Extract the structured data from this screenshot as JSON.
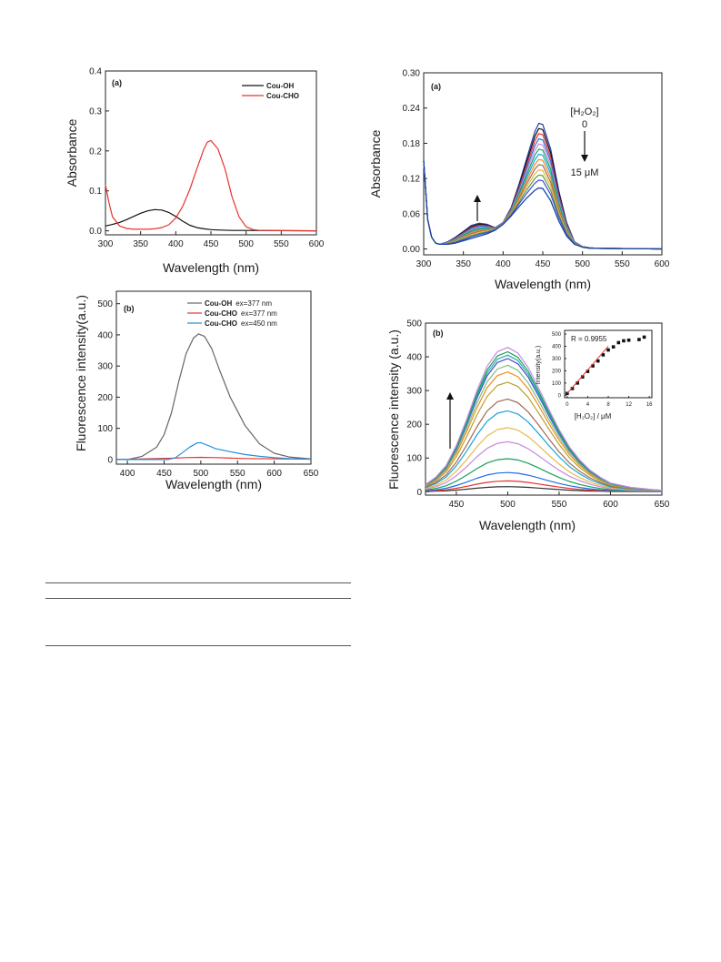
{
  "chart_data": [
    {
      "id": "p1",
      "type": "line",
      "panel_label": "(a)",
      "xlabel": "Wavelength (nm)",
      "ylabel": "Absorbance",
      "xlim": [
        300,
        600
      ],
      "ylim": [
        -0.01,
        0.4
      ],
      "xticks": [
        300,
        350,
        400,
        450,
        500,
        550,
        600
      ],
      "xtick_labels": [
        "300",
        "350",
        "400",
        "450",
        "500",
        "550",
        "600"
      ],
      "yticks": [
        0.0,
        0.1,
        0.2,
        0.3,
        0.4
      ],
      "ytick_labels": [
        "0.0",
        "0.1",
        "0.2",
        "0.3",
        "0.4"
      ],
      "legend": {
        "position": "top-right",
        "entries": [
          {
            "label": "Cou-OH",
            "color": "#111111"
          },
          {
            "label": "Cou-CHO",
            "color": "#e8322e"
          }
        ]
      },
      "series": [
        {
          "name": "Cou-OH",
          "color": "#111111",
          "x": [
            300,
            310,
            320,
            330,
            340,
            350,
            360,
            370,
            380,
            390,
            400,
            410,
            420,
            430,
            440,
            450,
            460,
            480,
            500,
            600
          ],
          "y": [
            0.012,
            0.016,
            0.021,
            0.028,
            0.036,
            0.044,
            0.05,
            0.053,
            0.052,
            0.046,
            0.036,
            0.024,
            0.014,
            0.008,
            0.005,
            0.003,
            0.002,
            0.001,
            0.001,
            0.0
          ]
        },
        {
          "name": "Cou-CHO",
          "color": "#e8322e",
          "x": [
            300,
            305,
            310,
            320,
            330,
            340,
            350,
            360,
            370,
            380,
            390,
            400,
            410,
            420,
            430,
            440,
            445,
            450,
            460,
            470,
            480,
            490,
            500,
            510,
            520,
            600
          ],
          "y": [
            0.115,
            0.07,
            0.035,
            0.012,
            0.006,
            0.004,
            0.004,
            0.004,
            0.005,
            0.008,
            0.015,
            0.032,
            0.062,
            0.104,
            0.155,
            0.205,
            0.222,
            0.226,
            0.205,
            0.155,
            0.085,
            0.035,
            0.01,
            0.003,
            0.001,
            0.0
          ]
        }
      ]
    },
    {
      "id": "p2",
      "type": "line",
      "panel_label": "(a)",
      "xlabel": "Wavelength (nm)",
      "ylabel": "Absorbance",
      "xlim": [
        300,
        600
      ],
      "ylim": [
        -0.01,
        0.3
      ],
      "xticks": [
        300,
        350,
        400,
        450,
        500,
        550,
        600
      ],
      "xtick_labels": [
        "300",
        "350",
        "400",
        "450",
        "500",
        "550",
        "600"
      ],
      "yticks": [
        0.0,
        0.06,
        0.12,
        0.18,
        0.24,
        0.3
      ],
      "ytick_labels": [
        "0.00",
        "0.06",
        "0.12",
        "0.18",
        "0.24",
        "0.30"
      ],
      "annotations": {
        "conc_label": "[H₂O₂]",
        "start": "0",
        "end": "15 μM"
      },
      "x": [
        300,
        305,
        310,
        315,
        320,
        330,
        340,
        350,
        360,
        370,
        380,
        390,
        400,
        410,
        420,
        430,
        440,
        445,
        450,
        460,
        470,
        480,
        490,
        500,
        510,
        520,
        600
      ],
      "shape_a": [
        0.15,
        0.05,
        0.02,
        0.01,
        0.008,
        0.012,
        0.02,
        0.03,
        0.04,
        0.044,
        0.042,
        0.036,
        0.045,
        0.07,
        0.11,
        0.155,
        0.2,
        0.214,
        0.212,
        0.17,
        0.1,
        0.045,
        0.012,
        0.004,
        0.002,
        0.001,
        0.0
      ],
      "shape_b": [
        0.15,
        0.05,
        0.02,
        0.01,
        0.008,
        0.008,
        0.01,
        0.014,
        0.018,
        0.022,
        0.026,
        0.032,
        0.042,
        0.056,
        0.072,
        0.087,
        0.1,
        0.104,
        0.103,
        0.082,
        0.048,
        0.022,
        0.008,
        0.003,
        0.001,
        0.001,
        0.0
      ],
      "curves": [
        {
          "color": "#1f3fa8",
          "weight": 0
        },
        {
          "color": "#111111",
          "weight": 0.08
        },
        {
          "color": "#e8322e",
          "weight": 0.16
        },
        {
          "color": "#1f6fe0",
          "weight": 0.24
        },
        {
          "color": "#c58be0",
          "weight": 0.32
        },
        {
          "color": "#17a05a",
          "weight": 0.4
        },
        {
          "color": "#1aa5d6",
          "weight": 0.48
        },
        {
          "color": "#f28c1a",
          "weight": 0.56
        },
        {
          "color": "#a06a4f",
          "weight": 0.64
        },
        {
          "color": "#e8b84a",
          "weight": 0.72
        },
        {
          "color": "#5a9a3e",
          "weight": 0.8
        },
        {
          "color": "#3f4bd8",
          "weight": 0.88
        },
        {
          "color": "#2aa8a0",
          "weight": 1.0
        },
        {
          "color": "#1f3fa8",
          "weight": 1.0
        }
      ]
    },
    {
      "id": "p3",
      "type": "line",
      "panel_label": "(b)",
      "xlabel": "Wavelength (nm)",
      "ylabel": "Fluorescence intensity(a.u.)",
      "xlim": [
        385,
        650
      ],
      "ylim": [
        -15,
        540
      ],
      "xticks": [
        400,
        450,
        500,
        550,
        600,
        650
      ],
      "xtick_labels": [
        "400",
        "450",
        "500",
        "550",
        "600",
        "650"
      ],
      "yticks": [
        0,
        100,
        200,
        300,
        400,
        500
      ],
      "ytick_labels": [
        "0",
        "100",
        "200",
        "300",
        "400",
        "500"
      ],
      "legend": {
        "position": "top-right",
        "entries": [
          {
            "label": "Cou-OH",
            "suffix": "ex=377 nm",
            "color": "#666666"
          },
          {
            "label": "Cou-CHO",
            "suffix": "ex=377 nm",
            "color": "#e8322e"
          },
          {
            "label": "Cou-CHO",
            "suffix": "ex=450 nm",
            "color": "#1f8fe0"
          }
        ]
      },
      "series": [
        {
          "name": "Cou-OH ex=377 nm",
          "color": "#666666",
          "x": [
            385,
            400,
            420,
            440,
            450,
            460,
            470,
            480,
            490,
            497,
            505,
            515,
            525,
            540,
            560,
            580,
            600,
            620,
            650
          ],
          "y": [
            0,
            0,
            10,
            40,
            80,
            150,
            250,
            340,
            390,
            403,
            395,
            355,
            290,
            200,
            110,
            50,
            20,
            8,
            2
          ]
        },
        {
          "name": "Cou-CHO ex=377 nm",
          "color": "#e8322e",
          "x": [
            385,
            420,
            460,
            480,
            500,
            520,
            560,
            650
          ],
          "y": [
            0,
            2,
            4,
            6,
            7,
            6,
            3,
            1
          ]
        },
        {
          "name": "Cou-CHO ex=450 nm",
          "color": "#1f8fe0",
          "x": [
            385,
            455,
            465,
            475,
            485,
            495,
            500,
            510,
            520,
            540,
            560,
            580,
            600,
            620,
            650
          ],
          "y": [
            0,
            0,
            5,
            22,
            40,
            53,
            54,
            45,
            35,
            25,
            16,
            10,
            6,
            3,
            1
          ]
        }
      ]
    },
    {
      "id": "p4",
      "type": "line",
      "panel_label": "(b)",
      "xlabel": "Wavelength (nm)",
      "ylabel": "Fluorescence intensity (a.u.)",
      "xlim": [
        420,
        650
      ],
      "ylim": [
        -10,
        500
      ],
      "xticks": [
        450,
        500,
        550,
        600,
        650
      ],
      "xtick_labels": [
        "450",
        "500",
        "550",
        "600",
        "650"
      ],
      "yticks": [
        0,
        100,
        200,
        300,
        400,
        500
      ],
      "ytick_labels": [
        "0",
        "100",
        "200",
        "300",
        "400",
        "500"
      ],
      "profile_x": [
        420,
        430,
        440,
        450,
        460,
        470,
        480,
        490,
        500,
        510,
        520,
        530,
        540,
        550,
        560,
        570,
        580,
        590,
        600,
        620,
        640,
        650
      ],
      "profile_y": [
        0.05,
        0.1,
        0.18,
        0.32,
        0.5,
        0.7,
        0.87,
        0.97,
        1.0,
        0.96,
        0.86,
        0.72,
        0.57,
        0.43,
        0.31,
        0.22,
        0.15,
        0.1,
        0.06,
        0.03,
        0.015,
        0.01
      ],
      "curves": [
        {
          "peak": 15,
          "color": "#333333"
        },
        {
          "peak": 32,
          "color": "#e8322e"
        },
        {
          "peak": 57,
          "color": "#1f6fe0"
        },
        {
          "peak": 98,
          "color": "#17a05a"
        },
        {
          "peak": 148,
          "color": "#c58be0"
        },
        {
          "peak": 190,
          "color": "#e8b84a"
        },
        {
          "peak": 240,
          "color": "#1aa5d6"
        },
        {
          "peak": 275,
          "color": "#a06a4f"
        },
        {
          "peak": 325,
          "color": "#b8a030"
        },
        {
          "peak": 355,
          "color": "#f28c1a"
        },
        {
          "peak": 375,
          "color": "#7fbf7f"
        },
        {
          "peak": 395,
          "color": "#3f4bd8"
        },
        {
          "peak": 405,
          "color": "#2aa8a0"
        },
        {
          "peak": 415,
          "color": "#17a05a"
        },
        {
          "peak": 428,
          "color": "#c58be0"
        }
      ],
      "inset": {
        "r_label": "R = 0.9955",
        "xlabel": "[H₂O₂] / μM",
        "ylabel": "Intensity(a.u.)",
        "xlim": [
          -0.5,
          16.5
        ],
        "ylim": [
          -20,
          530
        ],
        "xticks": [
          0,
          4,
          8,
          12,
          16
        ],
        "xtick_labels": [
          "0",
          "4",
          "8",
          "12",
          "16"
        ],
        "yticks": [
          0,
          100,
          200,
          300,
          400,
          500
        ],
        "ytick_labels": [
          "0",
          "100",
          "200",
          "300",
          "400",
          "500"
        ],
        "points_x": [
          0,
          1,
          2,
          3,
          4,
          5,
          6,
          7,
          8,
          9,
          10,
          11,
          12,
          14,
          15
        ],
        "points_y": [
          15,
          55,
          100,
          150,
          195,
          240,
          280,
          330,
          370,
          395,
          430,
          445,
          450,
          455,
          475
        ],
        "fit_x": [
          0,
          8
        ],
        "fit_y": [
          15,
          400
        ]
      }
    }
  ]
}
